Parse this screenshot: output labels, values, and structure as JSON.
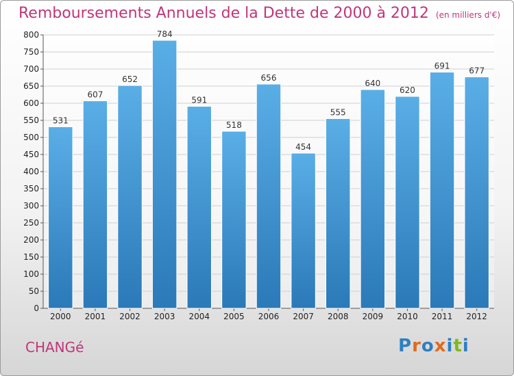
{
  "title": "Remboursements Annuels de la Dette de 2000 à 2012",
  "unit": "(en milliers d'€)",
  "commune": "CHANGé",
  "logo": {
    "text": "Proxiti",
    "letter_colors": [
      "#2f7fc1",
      "#e06a1e",
      "#2f7fc1",
      "#e06a1e",
      "#2f7fc1",
      "#7fb81e",
      "#2f7fc1"
    ]
  },
  "colors": {
    "bar_top": "#5aaee6",
    "bar_bottom": "#2b79b8",
    "title": "#c0357a",
    "grid": "#cfcfcf"
  },
  "chart_data": {
    "type": "bar",
    "title": "Remboursements Annuels de la Dette de 2000 à 2012",
    "categories": [
      "2000",
      "2001",
      "2002",
      "2003",
      "2004",
      "2005",
      "2006",
      "2007",
      "2008",
      "2009",
      "2010",
      "2011",
      "2012"
    ],
    "values": [
      531,
      607,
      652,
      784,
      591,
      518,
      656,
      454,
      555,
      640,
      620,
      691,
      677
    ],
    "ylim": [
      0,
      800
    ],
    "yticks": [
      0,
      50,
      100,
      150,
      200,
      250,
      300,
      350,
      400,
      450,
      500,
      550,
      600,
      650,
      700,
      750,
      800
    ],
    "grid": true,
    "xlabel": "",
    "ylabel": ""
  }
}
